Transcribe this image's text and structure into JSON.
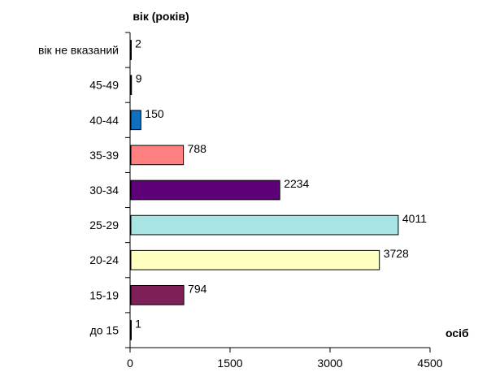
{
  "chart_data": {
    "type": "bar",
    "orientation": "horizontal",
    "title": "",
    "ylabel": "вік (років)",
    "xlabel": "осіб",
    "categories": [
      "до 15",
      "15-19",
      "20-24",
      "25-29",
      "30-34",
      "35-39",
      "40-44",
      "45-49",
      "вік не вказаний"
    ],
    "values": [
      1,
      794,
      3728,
      4011,
      2234,
      788,
      150,
      9,
      2
    ],
    "value_labels": [
      "1",
      "794",
      "3728",
      "4011",
      "2234",
      "788",
      "150",
      "9",
      "2"
    ],
    "colors": [
      "#ffffff",
      "#7d2058",
      "#ffffc0",
      "#a8e4e4",
      "#5e0078",
      "#ff8080",
      "#1070c0",
      "#ffffff",
      "#ffffff"
    ],
    "xlim": [
      0,
      4500
    ],
    "xticks": [
      0,
      1500,
      3000,
      4500
    ],
    "xtick_labels": [
      "0",
      "1500",
      "3000",
      "4500"
    ],
    "grid": false,
    "legend": "none"
  }
}
